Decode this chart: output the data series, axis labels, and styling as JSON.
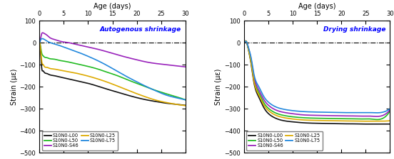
{
  "title_left": "Autogenous shrinkage",
  "title_right": "Drying shrinkage",
  "xlabel": "Age (days)",
  "ylabel": "Strain (με)",
  "xlim": [
    0,
    30
  ],
  "ylim": [
    -500,
    100
  ],
  "yticks": [
    -500,
    -400,
    -300,
    -200,
    -100,
    0,
    100
  ],
  "xticks": [
    0,
    5,
    10,
    15,
    20,
    25,
    30
  ],
  "colors": {
    "L00": "#111111",
    "L50": "#22bb22",
    "S46": "#9922bb",
    "L25": "#ddaa00",
    "L75": "#2288dd"
  },
  "autogenous": {
    "L00_x": [
      0,
      0.1,
      0.3,
      0.5,
      0.7,
      1.0,
      1.5,
      2,
      3,
      4,
      5,
      6,
      7,
      8,
      10,
      12,
      14,
      16,
      18,
      20,
      22,
      24,
      26,
      28,
      30
    ],
    "L00_y": [
      0,
      -5,
      -60,
      -120,
      -128,
      -135,
      -140,
      -145,
      -150,
      -155,
      -160,
      -165,
      -170,
      -175,
      -185,
      -198,
      -212,
      -225,
      -238,
      -250,
      -260,
      -268,
      -275,
      -280,
      -285
    ],
    "L50_x": [
      0,
      0.1,
      0.3,
      0.5,
      0.7,
      1.0,
      1.5,
      2,
      3,
      4,
      5,
      6,
      7,
      8,
      10,
      12,
      14,
      16,
      18,
      20,
      22,
      24,
      26,
      28,
      30
    ],
    "L50_y": [
      0,
      -2,
      -25,
      -50,
      -58,
      -65,
      -68,
      -72,
      -75,
      -80,
      -84,
      -88,
      -93,
      -98,
      -108,
      -120,
      -135,
      -150,
      -168,
      -185,
      -202,
      -218,
      -232,
      -245,
      -260
    ],
    "S46_x": [
      0,
      0.1,
      0.3,
      0.5,
      0.7,
      1.0,
      1.5,
      2,
      3,
      4,
      5,
      6,
      7,
      8,
      10,
      12,
      14,
      16,
      18,
      20,
      22,
      24,
      26,
      28,
      30
    ],
    "S46_y": [
      0,
      5,
      25,
      42,
      45,
      42,
      35,
      25,
      15,
      8,
      3,
      0,
      -5,
      -10,
      -20,
      -30,
      -42,
      -55,
      -67,
      -78,
      -88,
      -95,
      -100,
      -105,
      -110
    ],
    "L25_x": [
      0,
      0.1,
      0.3,
      0.5,
      0.7,
      1.0,
      1.5,
      2,
      3,
      4,
      5,
      6,
      7,
      8,
      10,
      12,
      14,
      16,
      18,
      20,
      22,
      24,
      26,
      28,
      30
    ],
    "L25_y": [
      0,
      -3,
      -40,
      -88,
      -98,
      -108,
      -112,
      -116,
      -120,
      -124,
      -128,
      -132,
      -136,
      -141,
      -152,
      -165,
      -180,
      -197,
      -215,
      -232,
      -248,
      -262,
      -272,
      -280,
      -286
    ],
    "L75_x": [
      0,
      0.1,
      0.3,
      0.5,
      0.7,
      1.0,
      1.5,
      2,
      3,
      4,
      5,
      6,
      7,
      8,
      10,
      12,
      14,
      16,
      18,
      20,
      22,
      24,
      26,
      28,
      30
    ],
    "L75_y": [
      0,
      3,
      15,
      18,
      18,
      15,
      8,
      2,
      -5,
      -12,
      -20,
      -28,
      -36,
      -44,
      -62,
      -82,
      -105,
      -130,
      -155,
      -178,
      -200,
      -220,
      -238,
      -250,
      -260
    ]
  },
  "drying": {
    "L00_x": [
      0,
      0.1,
      0.3,
      0.5,
      0.7,
      1.0,
      1.5,
      2,
      3,
      4,
      5,
      6,
      7,
      8,
      10,
      12,
      14,
      16,
      18,
      20,
      22,
      24,
      26,
      28,
      30
    ],
    "L00_y": [
      0,
      2,
      8,
      5,
      -10,
      -40,
      -100,
      -175,
      -245,
      -292,
      -322,
      -338,
      -348,
      -354,
      -360,
      -364,
      -366,
      -367,
      -368,
      -369,
      -369,
      -370,
      -370,
      -370,
      -370
    ],
    "L50_x": [
      0,
      0.1,
      0.3,
      0.5,
      0.7,
      1.0,
      1.5,
      2,
      3,
      4,
      5,
      6,
      7,
      8,
      10,
      12,
      14,
      16,
      18,
      20,
      22,
      24,
      26,
      28,
      30
    ],
    "L50_y": [
      0,
      2,
      7,
      5,
      -8,
      -35,
      -90,
      -160,
      -225,
      -270,
      -298,
      -314,
      -324,
      -330,
      -337,
      -341,
      -343,
      -344,
      -345,
      -346,
      -346,
      -347,
      -347,
      -348,
      -310
    ],
    "S46_x": [
      0,
      0.1,
      0.3,
      0.5,
      0.7,
      1.0,
      1.5,
      2,
      3,
      4,
      5,
      6,
      7,
      8,
      10,
      12,
      14,
      16,
      18,
      20,
      22,
      24,
      26,
      28,
      30
    ],
    "S46_y": [
      0,
      2,
      6,
      4,
      -7,
      -30,
      -80,
      -148,
      -212,
      -256,
      -284,
      -300,
      -310,
      -316,
      -323,
      -328,
      -330,
      -331,
      -332,
      -333,
      -333,
      -334,
      -334,
      -334,
      -305
    ],
    "L25_x": [
      0,
      0.1,
      0.3,
      0.5,
      0.7,
      1.0,
      1.5,
      2,
      3,
      4,
      5,
      6,
      7,
      8,
      10,
      12,
      14,
      16,
      18,
      20,
      22,
      24,
      26,
      28,
      30
    ],
    "L25_y": [
      0,
      2,
      7,
      5,
      -9,
      -38,
      -95,
      -168,
      -235,
      -280,
      -308,
      -324,
      -334,
      -340,
      -347,
      -351,
      -353,
      -354,
      -355,
      -356,
      -356,
      -357,
      -357,
      -357,
      -355
    ],
    "L75_x": [
      0,
      0.1,
      0.3,
      0.5,
      0.7,
      1.0,
      1.5,
      2,
      3,
      4,
      5,
      6,
      7,
      8,
      10,
      12,
      14,
      16,
      18,
      20,
      22,
      24,
      26,
      28,
      30
    ],
    "L75_y": [
      0,
      2,
      6,
      4,
      -6,
      -28,
      -72,
      -138,
      -198,
      -242,
      -270,
      -286,
      -296,
      -302,
      -309,
      -313,
      -315,
      -316,
      -317,
      -318,
      -318,
      -318,
      -318,
      -318,
      -300
    ]
  },
  "legend_items": [
    [
      "S10N0-L00",
      "L00"
    ],
    [
      "S10N0-L50",
      "L50"
    ],
    [
      "S10N0-S46",
      "S46"
    ],
    [
      "S10N0-L25",
      "L25"
    ],
    [
      "S10N0-L75",
      "L75"
    ]
  ]
}
